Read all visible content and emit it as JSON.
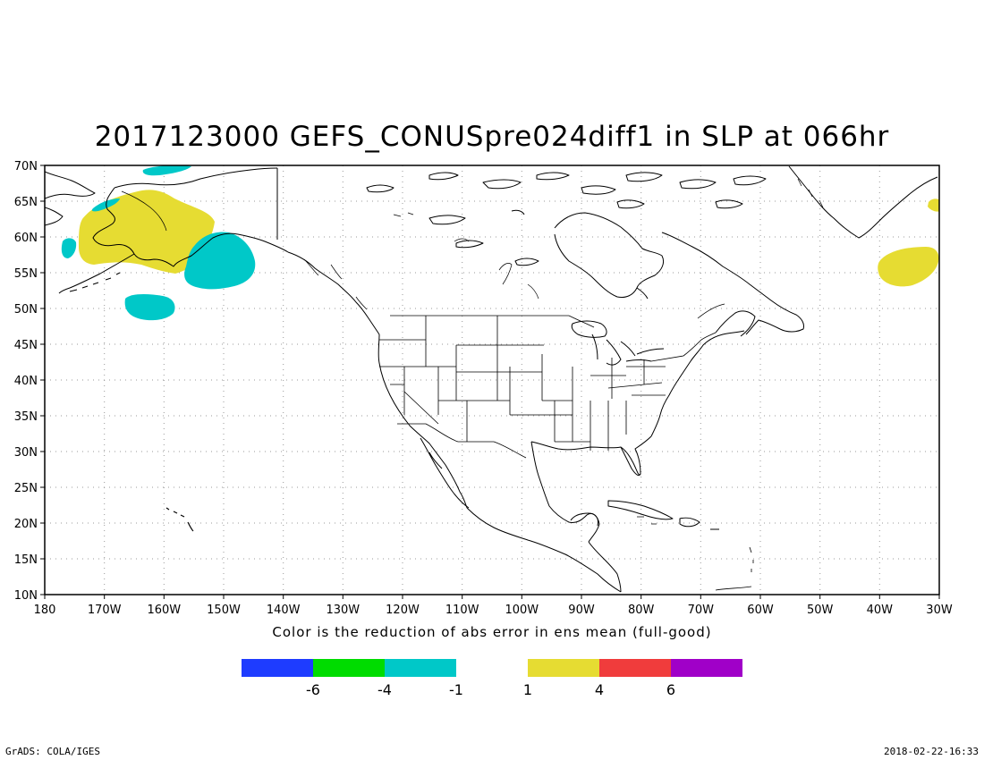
{
  "title": "2017123000 GEFS_CONUSpre024diff1 in SLP at 066hr",
  "caption": "Color is the reduction of abs error in ens mean (full-good)",
  "footer": {
    "left": "GrADS: COLA/IGES",
    "right": "2018-02-22-16:33"
  },
  "map": {
    "lon_range": [
      -180,
      -30
    ],
    "lat_range": [
      10,
      70
    ],
    "lat_ticks": [
      "70N",
      "65N",
      "60N",
      "55N",
      "50N",
      "45N",
      "40N",
      "35N",
      "30N",
      "25N",
      "20N",
      "15N",
      "10N"
    ],
    "lon_ticks": [
      "180",
      "170W",
      "160W",
      "150W",
      "140W",
      "130W",
      "120W",
      "110W",
      "100W",
      "90W",
      "80W",
      "70W",
      "60W",
      "50W",
      "40W",
      "30W"
    ],
    "grid": "dotted",
    "anomaly_regions": [
      {
        "sign": "positive",
        "color": "#e6dc32",
        "area": "Bering Sea / western Alaska"
      },
      {
        "sign": "negative",
        "color": "#00c8c8",
        "area": "Gulf of Alaska"
      },
      {
        "sign": "negative",
        "color": "#00c8c8",
        "area": "North Pacific near 50N 160W"
      },
      {
        "sign": "negative",
        "color": "#00c8c8",
        "area": "Arctic north of Alaska"
      },
      {
        "sign": "negative",
        "color": "#00c8c8",
        "area": "Bering Sea near 60N 175W"
      },
      {
        "sign": "positive",
        "color": "#e6dc32",
        "area": "North Atlantic south of Greenland"
      },
      {
        "sign": "positive",
        "color": "#e6dc32",
        "area": "Iceland region"
      }
    ]
  },
  "colorbar": {
    "colors": [
      "#1e3cff",
      "#00dc00",
      "#00c8c8",
      "#ffffff",
      "#e6dc32",
      "#f03c3c",
      "#a000c8"
    ],
    "labels": [
      "-6",
      "-4",
      "-1",
      "1",
      "4",
      "6"
    ]
  }
}
